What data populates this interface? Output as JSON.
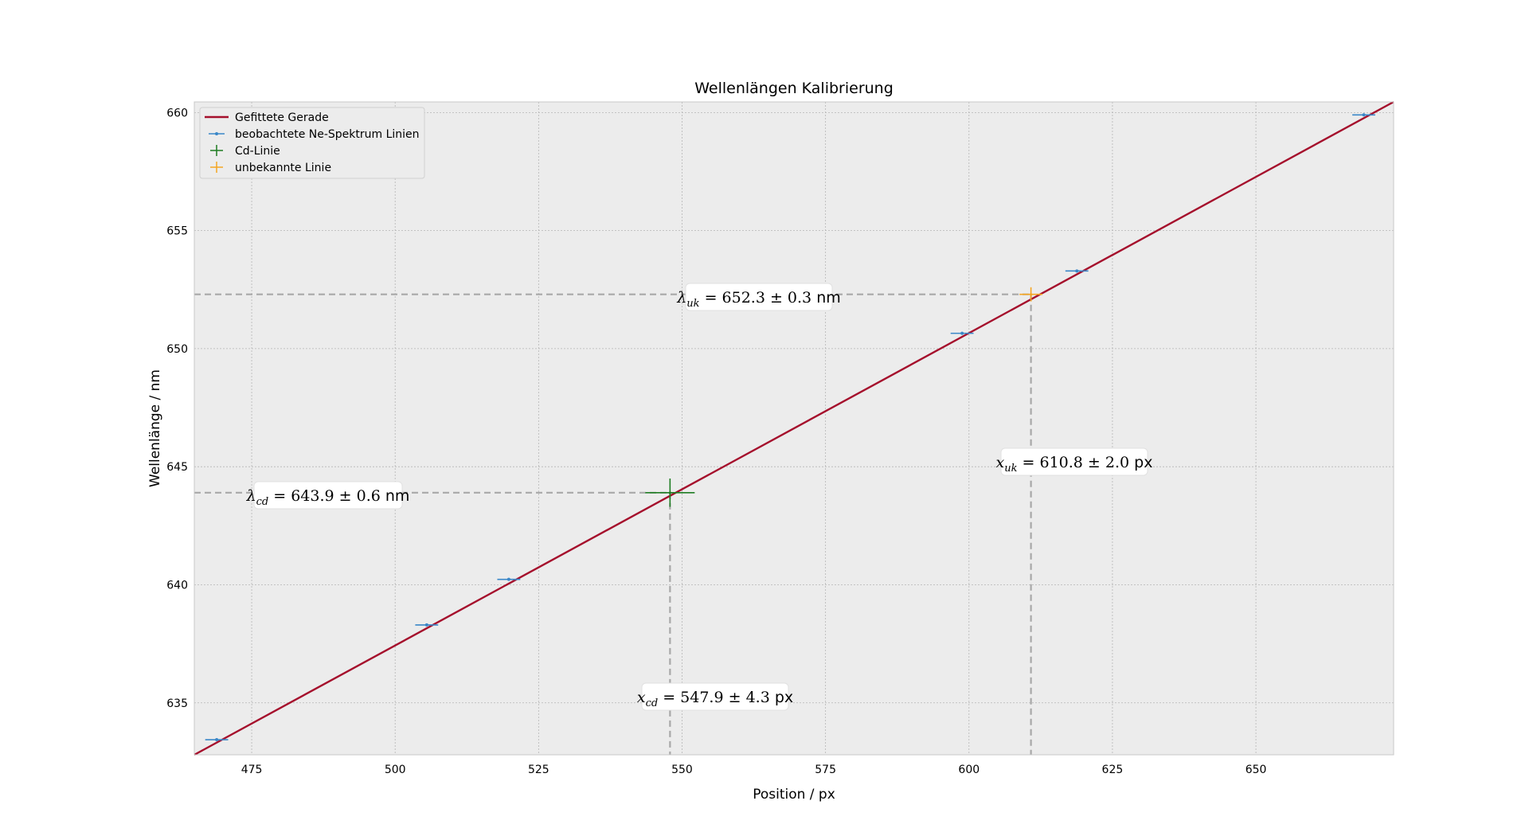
{
  "chart_data": {
    "type": "scatter",
    "title": "Wellenlängen Kalibrierung",
    "xlabel": "Position / px",
    "ylabel": "Wellenlänge / nm",
    "xlim": [
      465,
      674
    ],
    "ylim": [
      632.8,
      660.45
    ],
    "xticks": [
      475,
      500,
      525,
      550,
      575,
      600,
      625,
      650
    ],
    "yticks": [
      635,
      640,
      645,
      650,
      655,
      660
    ],
    "grid": true,
    "legend_position": "top-left",
    "colors": {
      "fit": "#a50f2c",
      "ne": "#3a87c8",
      "cd": "#1e7d22",
      "unknown": "#f5a623",
      "guide": "#a8a8a8",
      "background": "#ececec"
    },
    "fit_line": {
      "name": "Gefittete Gerade",
      "x": [
        465,
        674
      ],
      "y": [
        632.8,
        660.45
      ]
    },
    "series": [
      {
        "name": "beobachtete Ne-Spektrum Linien",
        "points": [
          {
            "x": 468.9,
            "y": 633.44,
            "xerr": 2.0,
            "yerr": 0.05
          },
          {
            "x": 505.5,
            "y": 638.3,
            "xerr": 2.0,
            "yerr": 0.05
          },
          {
            "x": 519.8,
            "y": 640.23,
            "xerr": 2.0,
            "yerr": 0.05
          },
          {
            "x": 598.8,
            "y": 650.65,
            "xerr": 2.0,
            "yerr": 0.05
          },
          {
            "x": 618.8,
            "y": 653.29,
            "xerr": 2.0,
            "yerr": 0.05
          },
          {
            "x": 668.8,
            "y": 659.9,
            "xerr": 2.0,
            "yerr": 0.05
          }
        ]
      },
      {
        "name": "Cd-Linie",
        "points": [
          {
            "x": 547.9,
            "y": 643.9,
            "xerr": 4.3,
            "yerr": 0.6
          }
        ]
      },
      {
        "name": "unbekannte Linie",
        "points": [
          {
            "x": 610.8,
            "y": 652.3,
            "xerr": 2.0,
            "yerr": 0.3
          }
        ]
      }
    ],
    "annotations": {
      "lambda_cd": {
        "sym": "λ",
        "sub": "cd",
        "value": "= 643.9 ± 0.6",
        "unit": "nm"
      },
      "x_cd": {
        "sym": "x",
        "sub": "cd",
        "value": "= 547.9 ± 4.3",
        "unit": "px"
      },
      "lambda_uk": {
        "sym": "λ",
        "sub": "uk",
        "value": "= 652.3 ± 0.3",
        "unit": "nm"
      },
      "x_uk": {
        "sym": "x",
        "sub": "uk",
        "value": "= 610.8 ± 2.0",
        "unit": "px"
      }
    }
  }
}
